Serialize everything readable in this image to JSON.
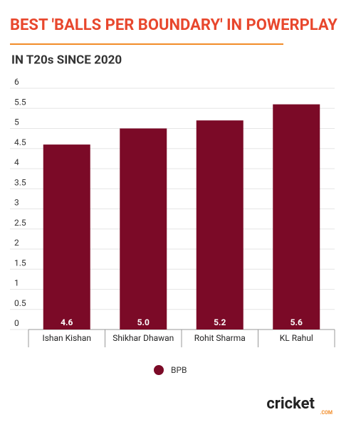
{
  "chart_data": {
    "type": "bar",
    "title": "BEST 'BALLS PER BOUNDARY' IN POWERPLAY",
    "subtitle": "IN T20s SINCE 2020",
    "categories": [
      "Ishan Kishan",
      "Shikhar Dhawan",
      "Rohit Sharma",
      "KL Rahul"
    ],
    "series": [
      {
        "name": "BPB",
        "color": "#7b0a27",
        "values": [
          4.6,
          5.0,
          5.2,
          5.6
        ],
        "value_labels": [
          "4.6",
          "5.0",
          "5.2",
          "5.6"
        ]
      }
    ],
    "ylim": [
      0,
      6
    ],
    "yticks": [
      0,
      0.5,
      1,
      1.5,
      2,
      2.5,
      3,
      3.5,
      4,
      4.5,
      5,
      5.5,
      6
    ],
    "grid": true,
    "legend": "bottom",
    "logo": {
      "text": "cricket",
      "suffix": ".COM"
    }
  }
}
